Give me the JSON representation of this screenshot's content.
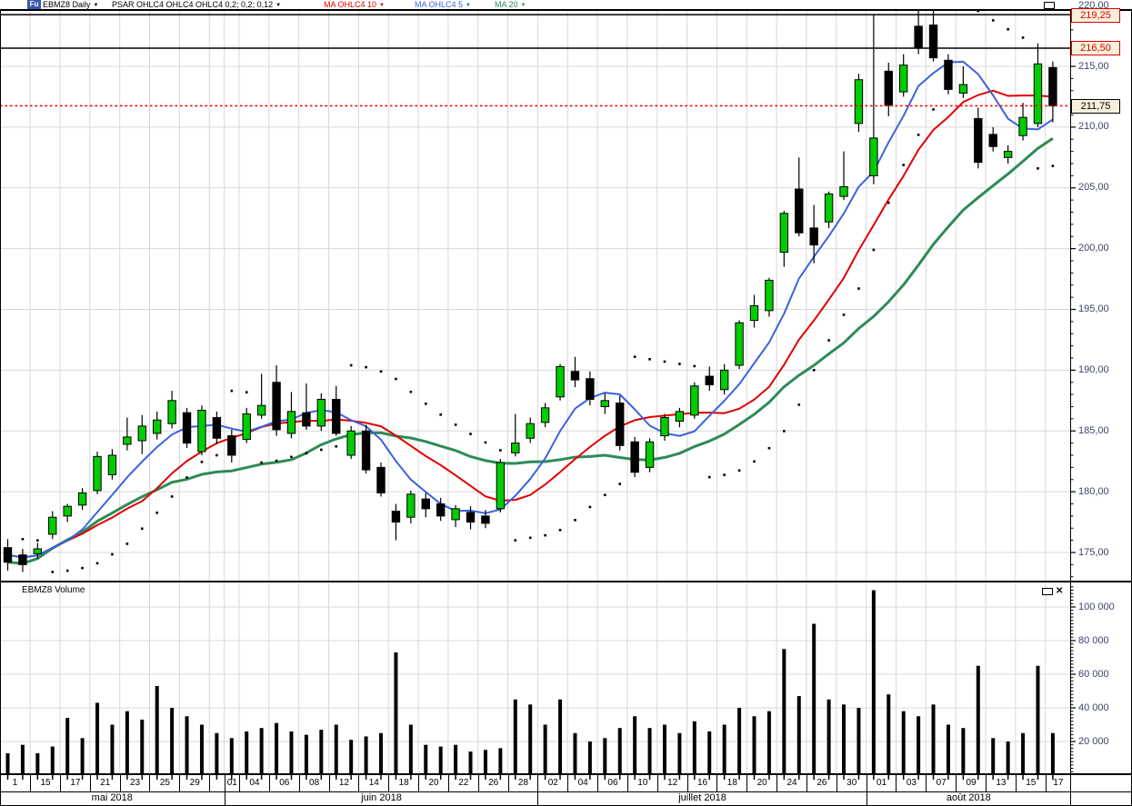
{
  "header": {
    "logo": "Fu",
    "symbol": "EBMZ8 Daily",
    "indicators": [
      {
        "label": "PSAR OHLC4 OHLC4 OHLC4  0,2; 0,2; 0,12",
        "color": "#000000"
      },
      {
        "label": "MA OHLC4  10",
        "color": "#e00000"
      },
      {
        "label": "MA OHLC4  5",
        "color": "#3a62e0"
      },
      {
        "label": "MA 20",
        "color": "#2e8b57"
      }
    ]
  },
  "icons": {
    "chevron_down": "▼",
    "close": "✕"
  },
  "price_pane": {
    "alert_lines": [
      {
        "price": 219.25,
        "label": "219,25"
      },
      {
        "price": 216.5,
        "label": "216,50"
      }
    ],
    "last_price": {
      "price": 211.75,
      "label": "211,75"
    }
  },
  "volume_pane": {
    "title": "EBMZ8 Volume"
  },
  "colors": {
    "up_candle": "#00cc00",
    "down_candle": "#000000",
    "ma5": "#3a62e0",
    "ma10": "#e00000",
    "ma20": "#2e8b57",
    "psar": "#000000",
    "grid": "#d8d8d8",
    "axis_text": "#3c4468",
    "alert_line": "#000000",
    "last_price_line": "#ff0000",
    "badge_bg": "#f5f1dc",
    "logo_bg": "#3a57ad"
  },
  "chart_data": {
    "type": "candlestick",
    "symbol": "EBMZ8",
    "timeframe": "Daily",
    "x_axis": {
      "months": [
        "mai 2018",
        "juin 2018",
        "juillet 2018",
        "août 2018"
      ]
    },
    "y_axis": {
      "range": [
        172.7,
        219.6
      ],
      "ticks": [
        {
          "v": 220,
          "t": "220,00"
        },
        {
          "v": 215,
          "t": "215,00"
        },
        {
          "v": 210,
          "t": "210,00"
        },
        {
          "v": 205,
          "t": "205,00"
        },
        {
          "v": 200,
          "t": "200,00"
        },
        {
          "v": 195,
          "t": "195,00"
        },
        {
          "v": 190,
          "t": "190,00"
        },
        {
          "v": 185,
          "t": "185,00"
        },
        {
          "v": 180,
          "t": "180,00"
        },
        {
          "v": 175,
          "t": "175,00"
        }
      ]
    },
    "volume_axis": {
      "range": [
        0,
        113000
      ],
      "ticks": [
        {
          "v": 100000,
          "t": "100 000"
        },
        {
          "v": 80000,
          "t": "80 000"
        },
        {
          "v": 60000,
          "t": "60 000"
        },
        {
          "v": 40000,
          "t": "40 000"
        },
        {
          "v": 20000,
          "t": "20 000"
        }
      ]
    },
    "indicators": [
      {
        "type": "psar",
        "label": "PSAR OHLC4 OHLC4 OHLC4  0,2; 0,2; 0,12",
        "color": "#000000",
        "step": 0.02,
        "max": 0.2
      },
      {
        "type": "sma",
        "period": 10,
        "source": "ohlc4",
        "label": "MA OHLC4  10",
        "color": "#e00000",
        "width": 2
      },
      {
        "type": "sma",
        "period": 5,
        "source": "ohlc4",
        "label": "MA OHLC4  5",
        "color": "#3a62e0",
        "width": 2
      },
      {
        "type": "sma",
        "period": 20,
        "source": "close",
        "label": "MA 20",
        "color": "#2e8b57",
        "width": 3
      }
    ],
    "candle_columns": [
      "day_label",
      "month_index",
      "open",
      "high",
      "low",
      "close",
      "volume"
    ],
    "candles": [
      [
        "1",
        0,
        175.4,
        176.1,
        173.5,
        174.2,
        13000
      ],
      [
        "14",
        0,
        174.8,
        175.3,
        173.4,
        174.0,
        18000
      ],
      [
        "15",
        0,
        174.9,
        175.8,
        174.5,
        175.3,
        13000
      ],
      [
        "16",
        0,
        176.5,
        178.4,
        176.1,
        177.9,
        17000
      ],
      [
        "17",
        0,
        178.0,
        179.0,
        177.5,
        178.8,
        34000
      ],
      [
        "18",
        0,
        178.9,
        180.3,
        178.5,
        179.9,
        22000
      ],
      [
        "21",
        0,
        180.1,
        183.3,
        179.8,
        182.9,
        43000
      ],
      [
        "22",
        0,
        181.4,
        183.5,
        181.0,
        183.0,
        30000
      ],
      [
        "23",
        0,
        183.9,
        186.1,
        183.4,
        184.5,
        38000
      ],
      [
        "24",
        0,
        184.2,
        186.3,
        183.1,
        185.4,
        33000
      ],
      [
        "25",
        0,
        184.8,
        186.6,
        184.3,
        185.9,
        53000
      ],
      [
        "28",
        0,
        185.6,
        188.3,
        185.2,
        187.5,
        40000
      ],
      [
        "29",
        0,
        186.5,
        186.9,
        183.6,
        184.0,
        35000
      ],
      [
        "30",
        0,
        183.3,
        187.1,
        183.0,
        186.7,
        30000
      ],
      [
        "31",
        0,
        186.1,
        186.6,
        183.9,
        184.4,
        25000
      ],
      [
        "01",
        1,
        184.6,
        185.1,
        182.4,
        183.0,
        22000
      ],
      [
        "04",
        1,
        184.3,
        186.9,
        184.0,
        186.4,
        26000
      ],
      [
        "05",
        1,
        186.3,
        189.7,
        186.0,
        187.1,
        28000
      ],
      [
        "06",
        1,
        189.0,
        190.4,
        184.6,
        185.1,
        31000
      ],
      [
        "07",
        1,
        184.8,
        188.2,
        184.4,
        186.6,
        26000
      ],
      [
        "08",
        1,
        186.5,
        188.9,
        185.1,
        185.4,
        24000
      ],
      [
        "11",
        1,
        185.4,
        188.1,
        185.0,
        187.6,
        27000
      ],
      [
        "12",
        1,
        187.6,
        188.7,
        184.6,
        184.8,
        30000
      ],
      [
        "13",
        1,
        183.0,
        185.4,
        182.7,
        185.0,
        21000
      ],
      [
        "14",
        1,
        185.0,
        185.5,
        181.5,
        181.8,
        23000
      ],
      [
        "15",
        1,
        182.0,
        182.4,
        179.6,
        179.9,
        25000
      ],
      [
        "18",
        1,
        178.4,
        179.0,
        176.0,
        177.5,
        73000
      ],
      [
        "19",
        1,
        177.9,
        180.1,
        177.4,
        179.8,
        30000
      ],
      [
        "20",
        1,
        179.4,
        179.9,
        177.9,
        178.6,
        18000
      ],
      [
        "21",
        1,
        179.0,
        179.5,
        177.6,
        178.0,
        17000
      ],
      [
        "22",
        1,
        177.7,
        178.9,
        177.1,
        178.6,
        18000
      ],
      [
        "25",
        1,
        178.3,
        178.8,
        176.9,
        177.5,
        14000
      ],
      [
        "26",
        1,
        178.0,
        178.5,
        177.0,
        177.4,
        15000
      ],
      [
        "27",
        1,
        178.6,
        182.7,
        178.3,
        182.4,
        16000
      ],
      [
        "28",
        1,
        183.2,
        186.4,
        182.9,
        184.0,
        45000
      ],
      [
        "29",
        1,
        184.4,
        186.1,
        184.0,
        185.6,
        42000
      ],
      [
        "02",
        2,
        185.7,
        187.3,
        185.3,
        186.9,
        30000
      ],
      [
        "03",
        2,
        187.8,
        190.5,
        187.5,
        190.3,
        45000
      ],
      [
        "04",
        2,
        189.9,
        191.1,
        188.6,
        189.2,
        25000
      ],
      [
        "05",
        2,
        189.3,
        189.9,
        187.1,
        187.6,
        20000
      ],
      [
        "06",
        2,
        187.0,
        188.1,
        186.4,
        187.5,
        22000
      ],
      [
        "09",
        2,
        187.3,
        187.9,
        183.4,
        183.8,
        28000
      ],
      [
        "10",
        2,
        184.1,
        184.5,
        181.2,
        181.6,
        35000
      ],
      [
        "11",
        2,
        182.0,
        184.4,
        181.6,
        184.1,
        28000
      ],
      [
        "12",
        2,
        184.6,
        186.4,
        184.2,
        186.1,
        30000
      ],
      [
        "13",
        2,
        185.8,
        186.9,
        185.3,
        186.6,
        25000
      ],
      [
        "16",
        2,
        186.3,
        189.0,
        186.0,
        188.7,
        32000
      ],
      [
        "17",
        2,
        189.5,
        190.3,
        188.3,
        188.8,
        26000
      ],
      [
        "18",
        2,
        188.4,
        190.5,
        188.0,
        190.0,
        30000
      ],
      [
        "19",
        2,
        190.4,
        194.1,
        190.1,
        193.9,
        40000
      ],
      [
        "20",
        2,
        194.1,
        196.2,
        193.5,
        195.3,
        35000
      ],
      [
        "23",
        2,
        194.9,
        197.6,
        194.4,
        197.4,
        38000
      ],
      [
        "24",
        2,
        199.7,
        203.1,
        198.5,
        202.9,
        75000
      ],
      [
        "25",
        2,
        204.9,
        207.5,
        201.0,
        201.3,
        47000
      ],
      [
        "26",
        2,
        201.7,
        203.6,
        198.8,
        200.3,
        90000
      ],
      [
        "27",
        2,
        202.2,
        204.7,
        201.7,
        204.5,
        45000
      ],
      [
        "30",
        2,
        204.3,
        208.0,
        204.0,
        205.1,
        42000
      ],
      [
        "31",
        2,
        210.3,
        214.4,
        209.6,
        213.9,
        40000
      ],
      [
        "01",
        3,
        206.0,
        219.3,
        205.3,
        209.1,
        110000
      ],
      [
        "02",
        3,
        214.6,
        215.3,
        210.9,
        211.8,
        48000
      ],
      [
        "03",
        3,
        212.9,
        216.0,
        212.5,
        215.1,
        38000
      ],
      [
        "06",
        3,
        218.3,
        219.8,
        216.0,
        216.5,
        35000
      ],
      [
        "07",
        3,
        218.4,
        220.0,
        215.4,
        215.7,
        42000
      ],
      [
        "08",
        3,
        215.5,
        216.0,
        212.7,
        213.1,
        30000
      ],
      [
        "09",
        3,
        212.8,
        215.0,
        212.4,
        213.5,
        28000
      ],
      [
        "10",
        3,
        210.7,
        211.6,
        206.6,
        207.1,
        65000
      ],
      [
        "13",
        3,
        209.4,
        210.0,
        208.0,
        208.4,
        22000
      ],
      [
        "14",
        3,
        207.5,
        208.5,
        207.0,
        208.0,
        20000
      ],
      [
        "15",
        3,
        209.3,
        212.0,
        208.9,
        210.8,
        25000
      ],
      [
        "16",
        3,
        210.3,
        216.9,
        210.0,
        215.2,
        65000
      ],
      [
        "17",
        3,
        214.9,
        215.4,
        210.4,
        211.75,
        25000
      ]
    ]
  }
}
